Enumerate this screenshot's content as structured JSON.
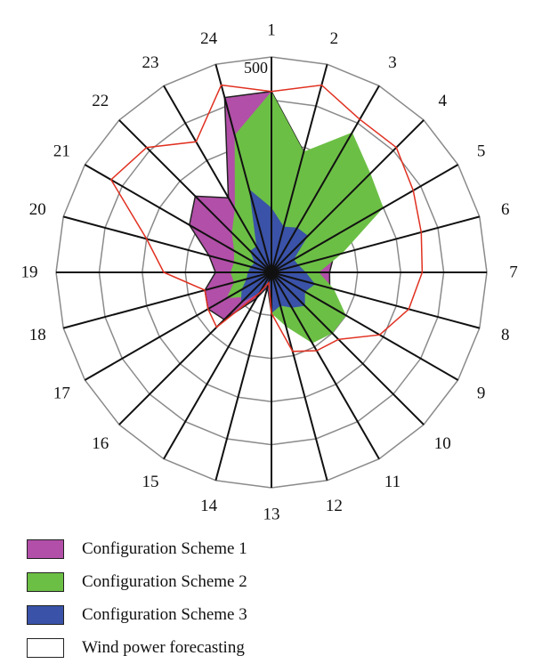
{
  "chart_data": {
    "type": "radar",
    "categories": [
      "1",
      "2",
      "3",
      "4",
      "5",
      "6",
      "7",
      "8",
      "9",
      "10",
      "11",
      "12",
      "13",
      "14",
      "15",
      "16",
      "17",
      "18",
      "19",
      "20",
      "21",
      "22",
      "23",
      "24"
    ],
    "rmax": 500,
    "max_label": "500",
    "series": [
      {
        "name": "Configuration Scheme 1",
        "color": "#b24fa8",
        "values": [
          420,
          290,
          220,
          170,
          140,
          150,
          135,
          140,
          195,
          160,
          110,
          100,
          95,
          35,
          70,
          155,
          170,
          160,
          130,
          150,
          220,
          250,
          200,
          420
        ]
      },
      {
        "name": "Configuration Scheme 2",
        "color": "#6cbf45",
        "values": [
          420,
          290,
          375,
          325,
          300,
          170,
          110,
          150,
          200,
          200,
          190,
          130,
          95,
          35,
          50,
          80,
          120,
          90,
          95,
          90,
          100,
          130,
          170,
          330
        ]
      },
      {
        "name": "Configuration Scheme 3",
        "color": "#3a52a8",
        "values": [
          150,
          110,
          120,
          120,
          60,
          65,
          80,
          105,
          90,
          110,
          95,
          80,
          95,
          35,
          55,
          100,
          80,
          60,
          55,
          50,
          45,
          70,
          70,
          200
        ]
      },
      {
        "name": "Wind power forecasting",
        "color": "#e03020",
        "values": [
          420,
          450,
          410,
          410,
          380,
          360,
          350,
          330,
          290,
          220,
          210,
          190,
          95,
          25,
          55,
          180,
          170,
          160,
          250,
          300,
          430,
          410,
          350,
          450
        ]
      }
    ],
    "legend": [
      {
        "label": "Configuration Scheme 1",
        "color": "#b24fa8"
      },
      {
        "label": "Configuration Scheme 2",
        "color": "#6cbf45"
      },
      {
        "label": "Configuration Scheme 3",
        "color": "#3a52a8"
      },
      {
        "label": "Wind power forecasting",
        "color": "#ffffff"
      }
    ]
  }
}
